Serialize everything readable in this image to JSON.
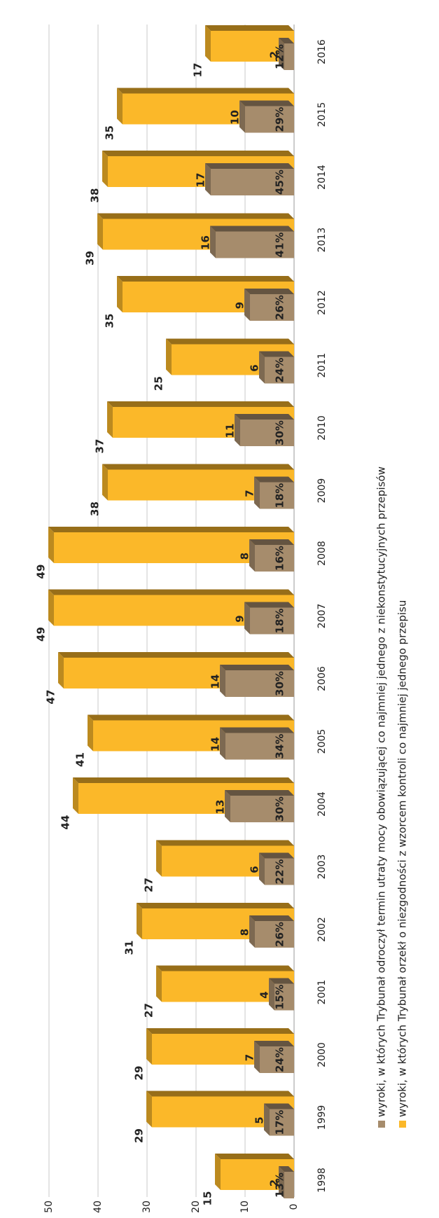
{
  "chart_data": {
    "type": "bar",
    "categories": [
      "1998",
      "1999",
      "2000",
      "2001",
      "2002",
      "2003",
      "2004",
      "2005",
      "2006",
      "2007",
      "2008",
      "2009",
      "2010",
      "2011",
      "2012",
      "2013",
      "2014",
      "2015",
      "2016"
    ],
    "series": [
      {
        "name": "wyroki, w których Trybunał odroczył termin utraty mocy obowiązującej co najmniej jednego z niekonstytucyjnych przepisów",
        "color": "#a68c6c",
        "values": [
          2,
          5,
          7,
          4,
          8,
          6,
          13,
          14,
          14,
          9,
          8,
          7,
          11,
          6,
          9,
          16,
          17,
          10,
          2
        ]
      },
      {
        "name": "wyroki, w których Trybunał orzekł o niezgodności z wzorcem kontroli co najmniej jednego przepisu",
        "color": "#fbb829",
        "values": [
          15,
          29,
          29,
          27,
          31,
          27,
          44,
          41,
          47,
          49,
          49,
          38,
          37,
          25,
          35,
          39,
          38,
          35,
          17
        ]
      }
    ],
    "shares": [
      {
        "value": 13,
        "label": "13%"
      },
      {
        "value": 17,
        "label": "17%"
      },
      {
        "value": 24,
        "label": "24%"
      },
      {
        "value": 15,
        "label": "15%"
      },
      {
        "value": 26,
        "label": "26%"
      },
      {
        "value": 22,
        "label": "22%"
      },
      {
        "value": 30,
        "label": "30%"
      },
      {
        "value": 34,
        "label": "34%"
      },
      {
        "value": 30,
        "label": "30%"
      },
      {
        "value": 18,
        "label": "18%"
      },
      {
        "value": 16,
        "label": "16%"
      },
      {
        "value": 18,
        "label": "18%"
      },
      {
        "value": 30,
        "label": "30%"
      },
      {
        "value": 24,
        "label": "24%"
      },
      {
        "value": 26,
        "label": "26%"
      },
      {
        "value": 41,
        "label": "41%"
      },
      {
        "value": 45,
        "label": "45%"
      },
      {
        "value": 29,
        "label": "29%"
      },
      {
        "value": 12,
        "label": "12%"
      }
    ],
    "ylim": [
      0,
      50
    ],
    "yticks": [
      0,
      10,
      20,
      30,
      40,
      50
    ],
    "grid": true
  }
}
